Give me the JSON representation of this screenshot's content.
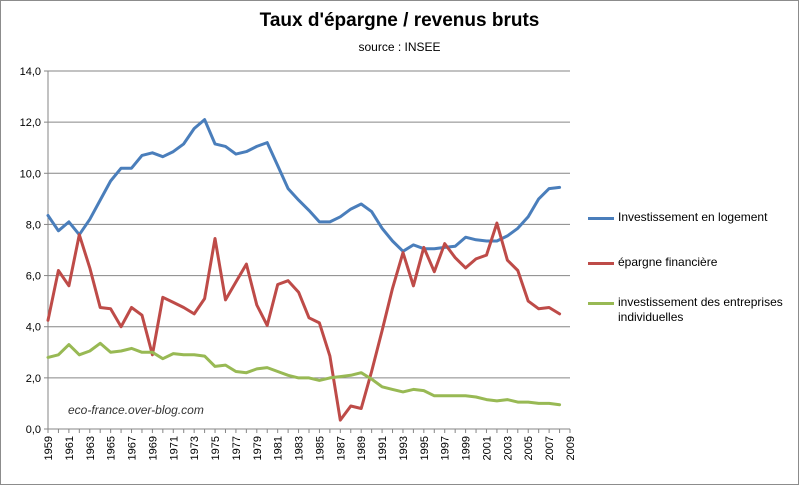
{
  "title": "Taux d'épargne / revenus bruts",
  "subtitle": "source : INSEE",
  "watermark": "eco-france.over-blog.com",
  "chart_data": {
    "type": "line",
    "title": "Taux d'épargne / revenus bruts",
    "subtitle": "source : INSEE",
    "ylim": [
      0,
      14
    ],
    "yticks": [
      "0,0",
      "2,0",
      "4,0",
      "6,0",
      "8,0",
      "10,0",
      "12,0",
      "14,0"
    ],
    "xlim": [
      1959,
      2009
    ],
    "xticks": [
      "1959",
      "1961",
      "1963",
      "1965",
      "1967",
      "1969",
      "1971",
      "1973",
      "1975",
      "1977",
      "1979",
      "1981",
      "1983",
      "1985",
      "1987",
      "1989",
      "1991",
      "1993",
      "1995",
      "1997",
      "1999",
      "2001",
      "2003",
      "2005",
      "2007",
      "2009"
    ],
    "grid": "horizontal",
    "legend_position": "right",
    "x": [
      1959,
      1960,
      1961,
      1962,
      1963,
      1964,
      1965,
      1966,
      1967,
      1968,
      1969,
      1970,
      1971,
      1972,
      1973,
      1974,
      1975,
      1976,
      1977,
      1978,
      1979,
      1980,
      1981,
      1982,
      1983,
      1984,
      1985,
      1986,
      1987,
      1988,
      1989,
      1990,
      1991,
      1992,
      1993,
      1994,
      1995,
      1996,
      1997,
      1998,
      1999,
      2000,
      2001,
      2002,
      2003,
      2004,
      2005,
      2006,
      2007,
      2008
    ],
    "series": [
      {
        "name": "Investissement en logement",
        "color": "#4a7ebb",
        "values": [
          8.35,
          7.75,
          8.1,
          7.6,
          8.2,
          8.95,
          9.7,
          10.2,
          10.2,
          10.7,
          10.8,
          10.65,
          10.85,
          11.15,
          11.75,
          12.1,
          11.15,
          11.05,
          10.75,
          10.85,
          11.05,
          11.2,
          10.3,
          9.4,
          8.95,
          8.55,
          8.1,
          8.1,
          8.3,
          8.6,
          8.8,
          8.5,
          7.85,
          7.35,
          6.95,
          7.2,
          7.05,
          7.05,
          7.1,
          7.15,
          7.5,
          7.4,
          7.35,
          7.35,
          7.55,
          7.85,
          8.3,
          9.0,
          9.4,
          9.45
        ]
      },
      {
        "name": "épargne financière",
        "color": "#be4b48",
        "values": [
          4.25,
          6.2,
          5.6,
          7.6,
          6.3,
          4.75,
          4.7,
          4.0,
          4.75,
          4.45,
          2.9,
          5.15,
          4.95,
          4.75,
          4.5,
          5.1,
          7.45,
          5.05,
          5.75,
          6.45,
          4.85,
          4.05,
          5.65,
          5.8,
          5.35,
          4.35,
          4.15,
          2.85,
          0.35,
          0.9,
          0.8,
          2.25,
          3.85,
          5.5,
          6.9,
          5.6,
          7.1,
          6.15,
          7.25,
          6.7,
          6.3,
          6.65,
          6.8,
          8.05,
          6.6,
          6.2,
          5.0,
          4.7,
          4.75,
          4.5
        ]
      },
      {
        "name": "investissement des entreprises individuelles",
        "color": "#98b954",
        "values": [
          2.8,
          2.9,
          3.3,
          2.9,
          3.05,
          3.35,
          3.0,
          3.05,
          3.15,
          3.0,
          3.0,
          2.75,
          2.95,
          2.9,
          2.9,
          2.85,
          2.45,
          2.5,
          2.25,
          2.2,
          2.35,
          2.4,
          2.25,
          2.1,
          2.0,
          2.0,
          1.9,
          2.0,
          2.05,
          2.1,
          2.2,
          1.95,
          1.65,
          1.55,
          1.45,
          1.55,
          1.5,
          1.3,
          1.3,
          1.3,
          1.3,
          1.25,
          1.15,
          1.1,
          1.15,
          1.05,
          1.05,
          1.0,
          1.0,
          0.95
        ]
      }
    ]
  }
}
